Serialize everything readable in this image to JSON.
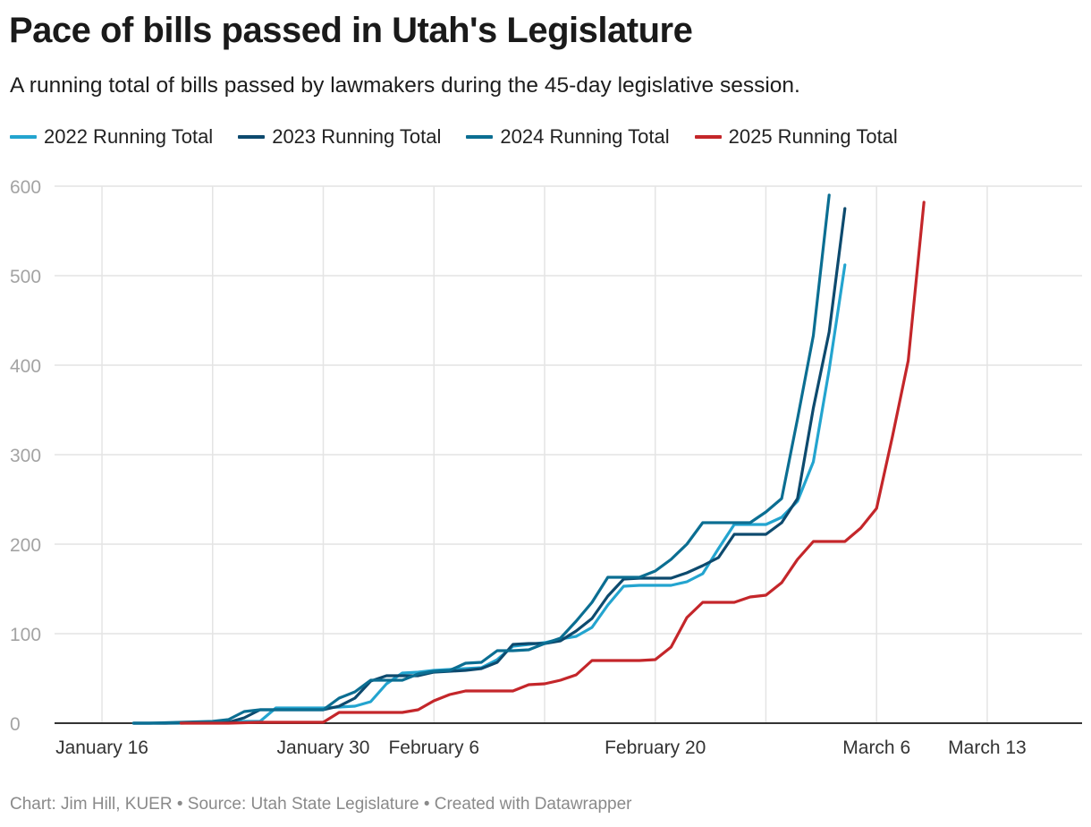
{
  "title": "Pace of bills passed in Utah's Legislature",
  "subtitle": "A running total of bills passed by lawmakers during the 45-day legislative session.",
  "footer": "Chart: Jim Hill, KUER • Source: Utah State Legislature • Created with Datawrapper",
  "chart_data": {
    "type": "line",
    "title": "Pace of bills passed in Utah's Legislature",
    "subtitle": "A running total of bills passed by lawmakers during the 45-day legislative session.",
    "x_axis": {
      "tick_labels": [
        "January 16",
        "January 30",
        "February 6",
        "February 20",
        "March 6",
        "March 13"
      ],
      "tick_days": [
        16,
        30,
        37,
        51,
        65,
        72
      ],
      "grid_days": [
        16,
        23,
        30,
        37,
        44,
        51,
        58,
        65,
        72
      ],
      "range_days": [
        13,
        78
      ]
    },
    "y_axis": {
      "range": [
        0,
        600
      ],
      "ticks": [
        0,
        100,
        200,
        300,
        400,
        500,
        600
      ],
      "grid": true
    },
    "legend_position": "top-left",
    "series": [
      {
        "name": "2022 Running Total",
        "color": "#23a4cf",
        "points": [
          [
            18,
            0
          ],
          [
            19,
            0
          ],
          [
            21,
            0
          ],
          [
            23,
            1
          ],
          [
            25,
            2
          ],
          [
            26,
            2
          ],
          [
            27,
            17
          ],
          [
            28,
            17
          ],
          [
            30,
            17
          ],
          [
            32,
            19
          ],
          [
            33,
            24
          ],
          [
            34,
            44
          ],
          [
            35,
            56
          ],
          [
            36,
            57
          ],
          [
            37,
            59
          ],
          [
            38,
            60
          ],
          [
            39,
            61
          ],
          [
            40,
            62
          ],
          [
            41,
            71
          ],
          [
            42,
            86
          ],
          [
            43,
            88
          ],
          [
            44,
            90
          ],
          [
            45,
            94
          ],
          [
            46,
            97
          ],
          [
            47,
            107
          ],
          [
            48,
            132
          ],
          [
            49,
            153
          ],
          [
            50,
            154
          ],
          [
            51,
            154
          ],
          [
            52,
            154
          ],
          [
            53,
            158
          ],
          [
            54,
            167
          ],
          [
            55,
            195
          ],
          [
            56,
            222
          ],
          [
            57,
            222
          ],
          [
            58,
            222
          ],
          [
            59,
            230
          ],
          [
            60,
            248
          ],
          [
            61,
            292
          ],
          [
            62,
            395
          ],
          [
            63,
            512
          ]
        ]
      },
      {
        "name": "2023 Running Total",
        "color": "#0d4a6e",
        "points": [
          [
            18,
            0
          ],
          [
            20,
            0
          ],
          [
            22,
            1
          ],
          [
            23,
            1
          ],
          [
            24,
            1
          ],
          [
            25,
            6
          ],
          [
            26,
            15
          ],
          [
            27,
            15
          ],
          [
            30,
            15
          ],
          [
            31,
            19
          ],
          [
            32,
            28
          ],
          [
            33,
            47
          ],
          [
            34,
            53
          ],
          [
            35,
            53
          ],
          [
            36,
            53
          ],
          [
            37,
            57
          ],
          [
            38,
            58
          ],
          [
            39,
            59
          ],
          [
            40,
            61
          ],
          [
            41,
            68
          ],
          [
            42,
            88
          ],
          [
            43,
            89
          ],
          [
            44,
            89
          ],
          [
            45,
            92
          ],
          [
            46,
            103
          ],
          [
            47,
            117
          ],
          [
            48,
            142
          ],
          [
            49,
            161
          ],
          [
            50,
            162
          ],
          [
            51,
            162
          ],
          [
            52,
            162
          ],
          [
            53,
            168
          ],
          [
            54,
            176
          ],
          [
            55,
            185
          ],
          [
            56,
            211
          ],
          [
            57,
            211
          ],
          [
            58,
            211
          ],
          [
            59,
            224
          ],
          [
            60,
            251
          ],
          [
            61,
            352
          ],
          [
            62,
            437
          ],
          [
            63,
            575
          ]
        ]
      },
      {
        "name": "2024 Running Total",
        "color": "#0b6e92",
        "points": [
          [
            18,
            0
          ],
          [
            19,
            0
          ],
          [
            21,
            1
          ],
          [
            23,
            2
          ],
          [
            24,
            4
          ],
          [
            25,
            13
          ],
          [
            26,
            15
          ],
          [
            27,
            15
          ],
          [
            30,
            15
          ],
          [
            31,
            28
          ],
          [
            32,
            35
          ],
          [
            33,
            48
          ],
          [
            34,
            48
          ],
          [
            35,
            48
          ],
          [
            36,
            55
          ],
          [
            37,
            58
          ],
          [
            38,
            59
          ],
          [
            39,
            67
          ],
          [
            40,
            68
          ],
          [
            41,
            81
          ],
          [
            42,
            81
          ],
          [
            43,
            82
          ],
          [
            44,
            89
          ],
          [
            45,
            95
          ],
          [
            46,
            114
          ],
          [
            47,
            135
          ],
          [
            48,
            163
          ],
          [
            49,
            163
          ],
          [
            50,
            163
          ],
          [
            51,
            170
          ],
          [
            52,
            183
          ],
          [
            53,
            200
          ],
          [
            54,
            224
          ],
          [
            55,
            224
          ],
          [
            56,
            224
          ],
          [
            57,
            224
          ],
          [
            58,
            236
          ],
          [
            59,
            251
          ],
          [
            60,
            340
          ],
          [
            61,
            433
          ],
          [
            62,
            590
          ]
        ]
      },
      {
        "name": "2025 Running Total",
        "color": "#c4262a",
        "points": [
          [
            21,
            0
          ],
          [
            22,
            0
          ],
          [
            24,
            0
          ],
          [
            26,
            1
          ],
          [
            28,
            1
          ],
          [
            30,
            1
          ],
          [
            31,
            12
          ],
          [
            32,
            12
          ],
          [
            34,
            12
          ],
          [
            35,
            12
          ],
          [
            36,
            15
          ],
          [
            37,
            25
          ],
          [
            38,
            32
          ],
          [
            39,
            36
          ],
          [
            40,
            36
          ],
          [
            41,
            36
          ],
          [
            42,
            36
          ],
          [
            43,
            43
          ],
          [
            44,
            44
          ],
          [
            45,
            48
          ],
          [
            46,
            54
          ],
          [
            47,
            70
          ],
          [
            48,
            70
          ],
          [
            49,
            70
          ],
          [
            50,
            70
          ],
          [
            51,
            71
          ],
          [
            52,
            85
          ],
          [
            53,
            118
          ],
          [
            54,
            135
          ],
          [
            55,
            135
          ],
          [
            56,
            135
          ],
          [
            57,
            141
          ],
          [
            58,
            143
          ],
          [
            59,
            157
          ],
          [
            60,
            183
          ],
          [
            61,
            203
          ],
          [
            62,
            203
          ],
          [
            63,
            203
          ],
          [
            64,
            218
          ],
          [
            65,
            240
          ],
          [
            66,
            320
          ],
          [
            67,
            405
          ],
          [
            68,
            582
          ]
        ]
      }
    ]
  }
}
